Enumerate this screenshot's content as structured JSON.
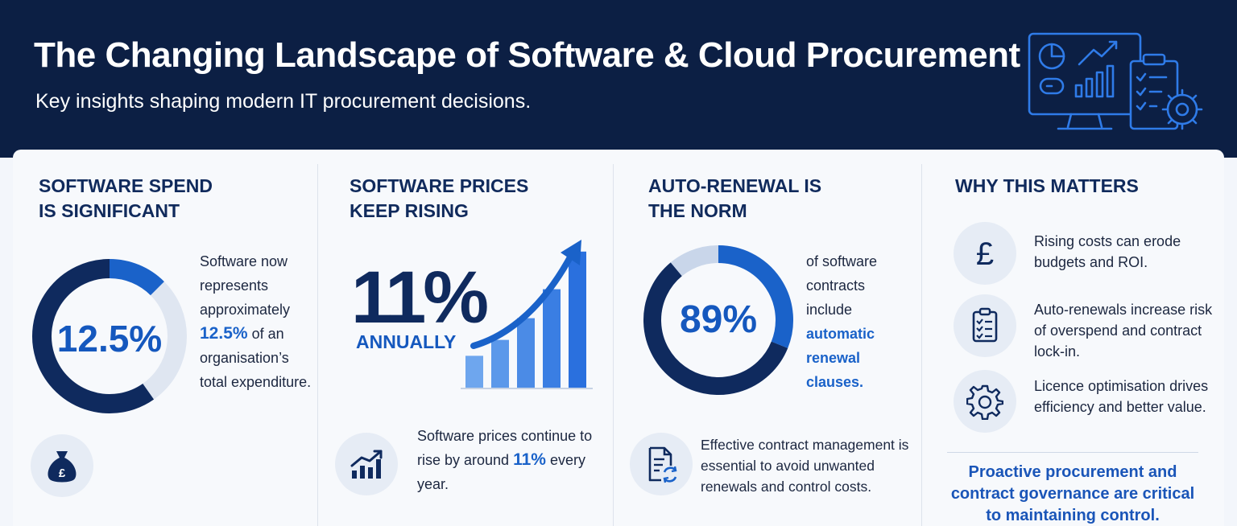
{
  "header": {
    "title": "The Changing Landscape of Software & Cloud Procurement",
    "subtitle": "Key insights shaping modern IT procurement decisions.",
    "icon": "dashboard-checklist-gear-icon"
  },
  "colors": {
    "navy": "#0c1f44",
    "dark_blue": "#0f2a5e",
    "accent_blue": "#1a62c9",
    "light_ring": "#dfe6f1"
  },
  "col1": {
    "heading": "SOFTWARE SPEND\nIS SIGNIFICANT",
    "donut_value": "12.5%",
    "donut_fraction": 0.125,
    "text_before": "Software now represents approximately",
    "highlight": "12.5%",
    "text_after": "of an organisation’s total expenditure.",
    "icon": "money-bag-pound-icon"
  },
  "col2": {
    "heading": "SOFTWARE PRICES\nKEEP RISING",
    "big_value": "11%",
    "big_label": "ANNUALLY",
    "bar_levels": [
      0.22,
      0.33,
      0.48,
      0.68,
      0.94
    ],
    "text_before": "Software prices continue to rise by around",
    "highlight": "11%",
    "text_after": "every year.",
    "icon": "rising-bar-chart-icon"
  },
  "col3": {
    "heading": "AUTO-RENEWAL IS\nTHE NORM",
    "donut_value": "89%",
    "donut_fraction": 0.89,
    "text_before": "of software contracts include",
    "highlight": "automatic renewal clauses.",
    "footer_text": "Effective contract management is essential to avoid unwanted renewals and control costs.",
    "icon": "document-renew-icon"
  },
  "col4": {
    "heading": "WHY THIS MATTERS",
    "items": [
      {
        "icon": "pound-icon",
        "text": "Rising costs can erode budgets and ROI."
      },
      {
        "icon": "checklist-icon",
        "text": "Auto-renewals increase risk of overspend and contract lock-in."
      },
      {
        "icon": "gear-icon",
        "text": "Licence optimisation drives efficiency and better value."
      }
    ],
    "conclusion": "Proactive procurement and contract governance are critical to maintaining control."
  }
}
